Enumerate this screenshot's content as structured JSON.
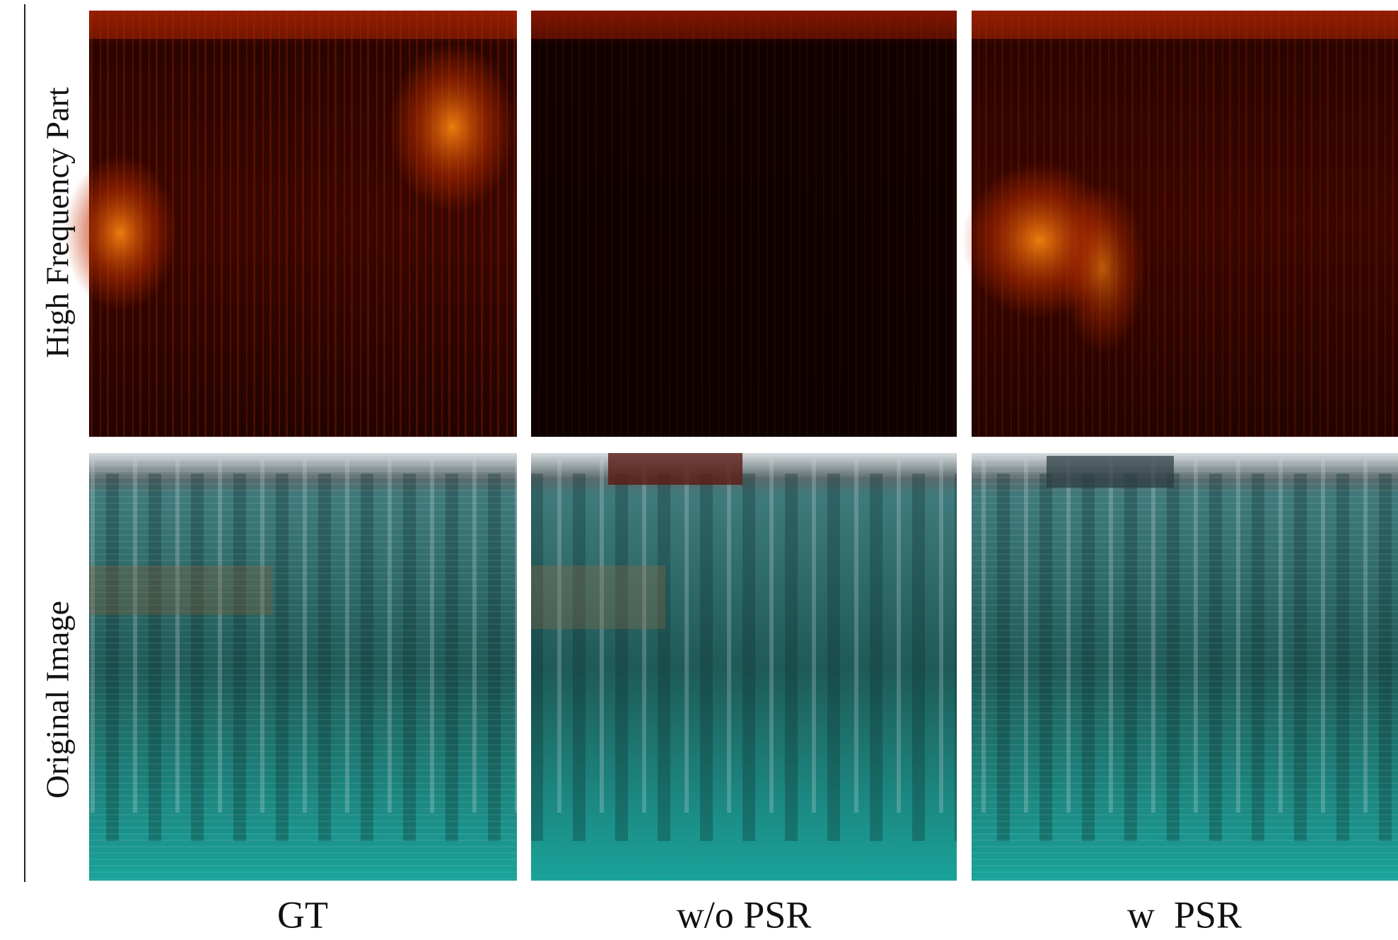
{
  "row_labels": [
    "High Frequency Part",
    "Original Image"
  ],
  "column_labels": [
    "GT",
    "w/o PSR",
    "w  PSR"
  ]
}
